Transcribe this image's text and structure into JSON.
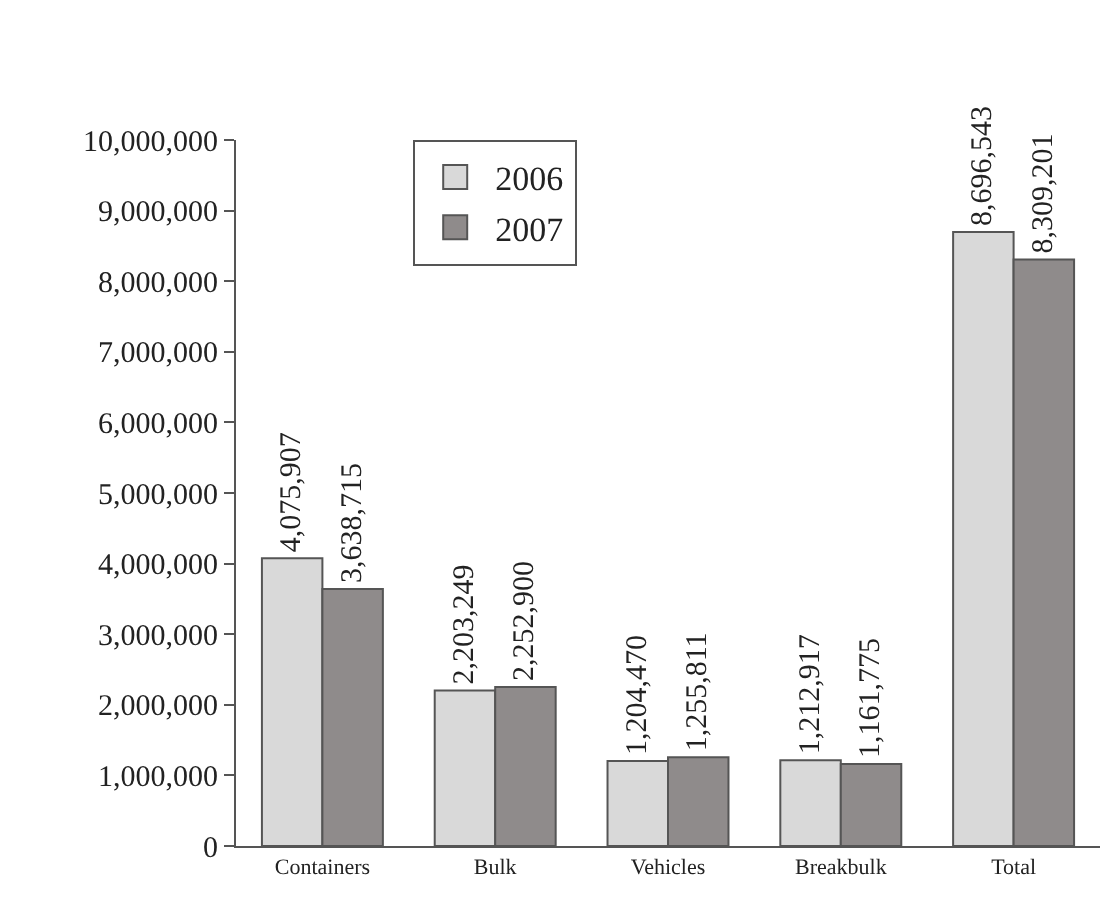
{
  "chart_data": {
    "type": "bar",
    "categories": [
      "Containers",
      "Bulk",
      "Vehicles",
      "Breakbulk",
      "Total"
    ],
    "series": [
      {
        "name": "2006",
        "color": "#d9d9d9",
        "values": [
          4075907,
          2203249,
          1204470,
          1212917,
          8696543
        ],
        "value_labels": [
          "4,075,907",
          "2,203,249",
          "1,204,470",
          "1,212,917",
          "8,696,543"
        ]
      },
      {
        "name": "2007",
        "color": "#8f8b8b",
        "values": [
          3638715,
          2252900,
          1255811,
          1161775,
          8309201
        ],
        "value_labels": [
          "3,638,715",
          "2,252,900",
          "1,255,811",
          "1,161,775",
          "8,309,201"
        ]
      }
    ],
    "ylim": [
      0,
      10000000
    ],
    "yticks": [
      {
        "value": 0,
        "label": "0"
      },
      {
        "value": 1000000,
        "label": "1,000,000"
      },
      {
        "value": 2000000,
        "label": "2,000,000"
      },
      {
        "value": 3000000,
        "label": "3,000,000"
      },
      {
        "value": 4000000,
        "label": "4,000,000"
      },
      {
        "value": 5000000,
        "label": "5,000,000"
      },
      {
        "value": 6000000,
        "label": "6,000,000"
      },
      {
        "value": 7000000,
        "label": "7,000,000"
      },
      {
        "value": 8000000,
        "label": "8,000,000"
      },
      {
        "value": 9000000,
        "label": "9,000,000"
      },
      {
        "value": 10000000,
        "label": "10,000,000"
      }
    ],
    "grid": false,
    "legend": "top"
  }
}
